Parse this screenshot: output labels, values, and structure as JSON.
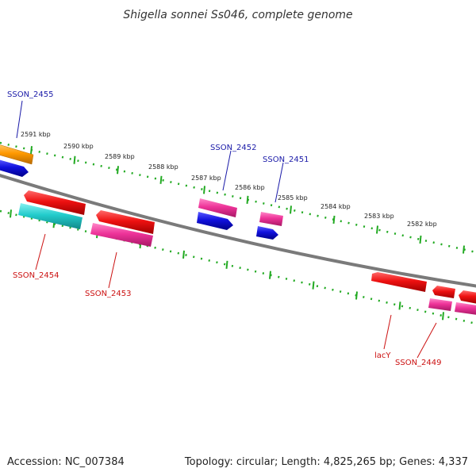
{
  "title": "Shigella sonnei Ss046, complete genome",
  "footer": {
    "accession": "Accession: NC_007384",
    "summary": "Topology: circular; Length: 4,825,265 bp; Genes: 4,337"
  },
  "colors": {
    "backbone": "#8a8a8a",
    "tick_dots": "#22aa22",
    "label_forward": "#1a1aa8",
    "label_reverse": "#cc1111",
    "red_gene": "#ee1111",
    "pink_gene": "#ee3399",
    "blue_gene": "#1111dd",
    "cyan_gene": "#22cccc",
    "orange_gene": "#ff9900"
  },
  "scale_ticks": [
    "2591 kbp",
    "2590 kbp",
    "2589 kbp",
    "2588 kbp",
    "2587 kbp",
    "2586 kbp",
    "2585 kbp",
    "2584 kbp",
    "2583 kbp",
    "2582 kbp"
  ],
  "genes": [
    {
      "label": "SSON_2455",
      "strand": "forward"
    },
    {
      "label": "SSON_2452",
      "strand": "forward"
    },
    {
      "label": "SSON_2451",
      "strand": "forward"
    },
    {
      "label": "SSON_2454",
      "strand": "reverse"
    },
    {
      "label": "SSON_2453",
      "strand": "reverse"
    },
    {
      "label": "lacY",
      "strand": "reverse"
    },
    {
      "label": "SSON_2449",
      "strand": "reverse"
    }
  ]
}
